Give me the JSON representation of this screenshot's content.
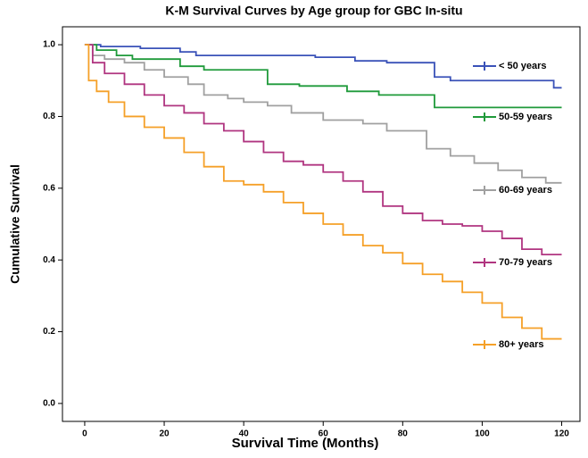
{
  "chart_data": {
    "type": "step",
    "title": "K-M Survival Curves by Age group for GBC In-situ",
    "x_label": "Survival Time (Months)",
    "y_label": "Cumulative Survival",
    "xlim": [
      -5.6,
      124.6
    ],
    "ylim": [
      -0.05,
      1.05
    ],
    "xticks": [
      0,
      20,
      40,
      60,
      80,
      100,
      120
    ],
    "yticks": [
      {
        "value": 0,
        "label": "0.0"
      },
      0.2,
      0.4,
      0.6,
      0.8,
      {
        "value": 1,
        "label": "1.0"
      }
    ],
    "grid": false,
    "series": [
      {
        "name": "< 50 years",
        "color": "#3a52b8",
        "x": [
          0,
          4,
          14,
          24,
          28,
          42,
          58,
          68,
          76,
          88,
          92,
          118,
          120
        ],
        "values": [
          1.0,
          0.995,
          0.99,
          0.98,
          0.97,
          0.97,
          0.965,
          0.955,
          0.95,
          0.91,
          0.9,
          0.88,
          0.88
        ]
      },
      {
        "name": "50-59 years",
        "color": "#1f9a3a",
        "x": [
          0,
          3,
          8,
          12,
          24,
          30,
          46,
          54,
          66,
          74,
          88,
          120
        ],
        "values": [
          1.0,
          0.985,
          0.97,
          0.96,
          0.94,
          0.93,
          0.89,
          0.885,
          0.87,
          0.86,
          0.825,
          0.825
        ]
      },
      {
        "name": "60-69 years",
        "color": "#a0a0a0",
        "x": [
          0,
          2,
          5,
          10,
          15,
          20,
          26,
          30,
          36,
          40,
          46,
          52,
          60,
          70,
          76,
          86,
          92,
          98,
          104,
          110,
          116,
          120
        ],
        "values": [
          1.0,
          0.97,
          0.96,
          0.95,
          0.93,
          0.91,
          0.89,
          0.86,
          0.85,
          0.84,
          0.83,
          0.81,
          0.79,
          0.78,
          0.76,
          0.71,
          0.69,
          0.67,
          0.65,
          0.63,
          0.615,
          0.615
        ]
      },
      {
        "name": "70-79 years",
        "color": "#b03580",
        "x": [
          0,
          2,
          5,
          10,
          15,
          20,
          25,
          30,
          35,
          40,
          45,
          50,
          55,
          60,
          65,
          70,
          75,
          80,
          85,
          90,
          95,
          100,
          105,
          110,
          115,
          120
        ],
        "values": [
          1.0,
          0.95,
          0.92,
          0.89,
          0.86,
          0.83,
          0.81,
          0.78,
          0.76,
          0.73,
          0.7,
          0.675,
          0.665,
          0.645,
          0.62,
          0.59,
          0.55,
          0.53,
          0.51,
          0.5,
          0.495,
          0.48,
          0.46,
          0.43,
          0.415,
          0.415
        ]
      },
      {
        "name": "80+ years",
        "color": "#f5a028",
        "x": [
          0,
          1,
          3,
          6,
          10,
          15,
          20,
          25,
          30,
          35,
          40,
          45,
          50,
          55,
          60,
          65,
          70,
          75,
          80,
          85,
          90,
          95,
          100,
          105,
          110,
          115,
          120
        ],
        "values": [
          1.0,
          0.9,
          0.87,
          0.84,
          0.8,
          0.77,
          0.74,
          0.7,
          0.66,
          0.62,
          0.61,
          0.59,
          0.56,
          0.53,
          0.5,
          0.47,
          0.44,
          0.42,
          0.39,
          0.36,
          0.34,
          0.31,
          0.28,
          0.24,
          0.21,
          0.18,
          0.18
        ]
      }
    ]
  }
}
